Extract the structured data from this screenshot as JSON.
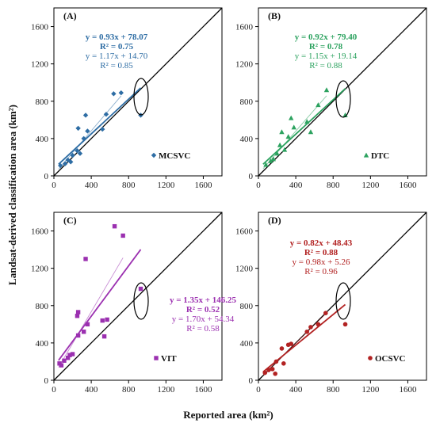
{
  "figure": {
    "xlabel": "Reported area (km²)",
    "ylabel": "Landsat-derived classification area (km²)"
  },
  "chart_data": [
    {
      "type": "scatter",
      "panel": "(A)",
      "legend": "MCSVC",
      "color": "#2e6da4",
      "marker": "diamond",
      "xlim": [
        0,
        1800
      ],
      "ylim": [
        0,
        1800
      ],
      "xticks": [
        0,
        400,
        800,
        1200,
        1600
      ],
      "yticks": [
        0,
        400,
        800,
        1200,
        1600
      ],
      "tick_labels": [
        "0",
        "400",
        "800",
        "1200",
        "1600"
      ],
      "points": [
        [
          70,
          110
        ],
        [
          120,
          130
        ],
        [
          150,
          170
        ],
        [
          180,
          150
        ],
        [
          200,
          220
        ],
        [
          250,
          270
        ],
        [
          260,
          510
        ],
        [
          280,
          240
        ],
        [
          320,
          400
        ],
        [
          340,
          650
        ],
        [
          360,
          480
        ],
        [
          520,
          500
        ],
        [
          560,
          660
        ],
        [
          640,
          880
        ],
        [
          720,
          890
        ],
        [
          930,
          650
        ]
      ],
      "fit_all": {
        "slope": 0.93,
        "intercept": 78.07,
        "x_range": [
          50,
          930
        ]
      },
      "fit_sub": {
        "slope": 1.17,
        "intercept": 14.7,
        "x_range": [
          50,
          720
        ]
      },
      "eq1": "y = 0.93x + 78.07",
      "r1": "R² = 0.75",
      "eq2": "y = 1.17x + 14.70",
      "r2": "R² = 0.85"
    },
    {
      "type": "scatter",
      "panel": "(B)",
      "legend": "DTC",
      "color": "#2ca25f",
      "marker": "triangle",
      "xlim": [
        0,
        1800
      ],
      "ylim": [
        0,
        1800
      ],
      "xticks": [
        0,
        400,
        800,
        1200,
        1600
      ],
      "yticks": [
        0,
        400,
        800,
        1200,
        1600
      ],
      "tick_labels": [
        "0",
        "400",
        "800",
        "1200",
        "1600"
      ],
      "points": [
        [
          80,
          120
        ],
        [
          130,
          160
        ],
        [
          160,
          180
        ],
        [
          200,
          240
        ],
        [
          230,
          330
        ],
        [
          250,
          470
        ],
        [
          280,
          280
        ],
        [
          320,
          420
        ],
        [
          350,
          620
        ],
        [
          380,
          520
        ],
        [
          520,
          580
        ],
        [
          560,
          470
        ],
        [
          640,
          760
        ],
        [
          730,
          920
        ],
        [
          930,
          650
        ]
      ],
      "fit_all": {
        "slope": 0.92,
        "intercept": 79.4,
        "x_range": [
          50,
          930
        ]
      },
      "fit_sub": {
        "slope": 1.15,
        "intercept": 19.14,
        "x_range": [
          50,
          730
        ]
      },
      "eq1": "y = 0.92x + 79.40",
      "r1": "R² = 0.78",
      "eq2": "y = 1.15x + 19.14",
      "r2": "R² = 0.88"
    },
    {
      "type": "scatter",
      "panel": "(C)",
      "legend": "VIT",
      "color": "#9b30b0",
      "marker": "square",
      "xlim": [
        0,
        1800
      ],
      "ylim": [
        0,
        1800
      ],
      "xticks": [
        0,
        400,
        800,
        1200,
        1600
      ],
      "yticks": [
        0,
        400,
        800,
        1200,
        1600
      ],
      "tick_labels": [
        "0",
        "400",
        "800",
        "1200",
        "1600"
      ],
      "points": [
        [
          60,
          180
        ],
        [
          80,
          160
        ],
        [
          110,
          210
        ],
        [
          150,
          240
        ],
        [
          170,
          270
        ],
        [
          200,
          280
        ],
        [
          250,
          690
        ],
        [
          260,
          730
        ],
        [
          260,
          480
        ],
        [
          320,
          520
        ],
        [
          340,
          1300
        ],
        [
          360,
          600
        ],
        [
          520,
          640
        ],
        [
          540,
          470
        ],
        [
          570,
          650
        ],
        [
          650,
          1650
        ],
        [
          740,
          1550
        ],
        [
          930,
          980
        ]
      ],
      "fit_all": {
        "slope": 1.35,
        "intercept": 146.25,
        "x_range": [
          50,
          930
        ]
      },
      "fit_sub": {
        "slope": 1.7,
        "intercept": 54.34,
        "x_range": [
          50,
          740
        ]
      },
      "eq1": "y = 1.35x + 146.25",
      "r1": "R² = 0.52",
      "eq2": "y = 1.70x + 54.34",
      "r2": "R² = 0.58"
    },
    {
      "type": "scatter",
      "panel": "(D)",
      "legend": "OCSVC",
      "color": "#b22222",
      "marker": "circle",
      "xlim": [
        0,
        1800
      ],
      "ylim": [
        0,
        1800
      ],
      "xticks": [
        0,
        400,
        800,
        1200,
        1600
      ],
      "yticks": [
        0,
        400,
        800,
        1200,
        1600
      ],
      "tick_labels": [
        "0",
        "400",
        "800",
        "1200",
        "1600"
      ],
      "points": [
        [
          70,
          80
        ],
        [
          110,
          110
        ],
        [
          150,
          120
        ],
        [
          180,
          70
        ],
        [
          190,
          200
        ],
        [
          250,
          340
        ],
        [
          270,
          180
        ],
        [
          320,
          380
        ],
        [
          350,
          390
        ],
        [
          520,
          520
        ],
        [
          560,
          570
        ],
        [
          640,
          600
        ],
        [
          720,
          720
        ],
        [
          930,
          600
        ]
      ],
      "fit_all": {
        "slope": 0.82,
        "intercept": 48.43,
        "x_range": [
          50,
          930
        ]
      },
      "fit_sub": {
        "slope": 0.98,
        "intercept": 5.26,
        "x_range": [
          50,
          720
        ]
      },
      "eq1": "y = 0.82x + 48.43",
      "r1": "R² = 0.88",
      "eq2": "y = 0.98x + 5.26",
      "r2": "R² = 0.96"
    }
  ]
}
